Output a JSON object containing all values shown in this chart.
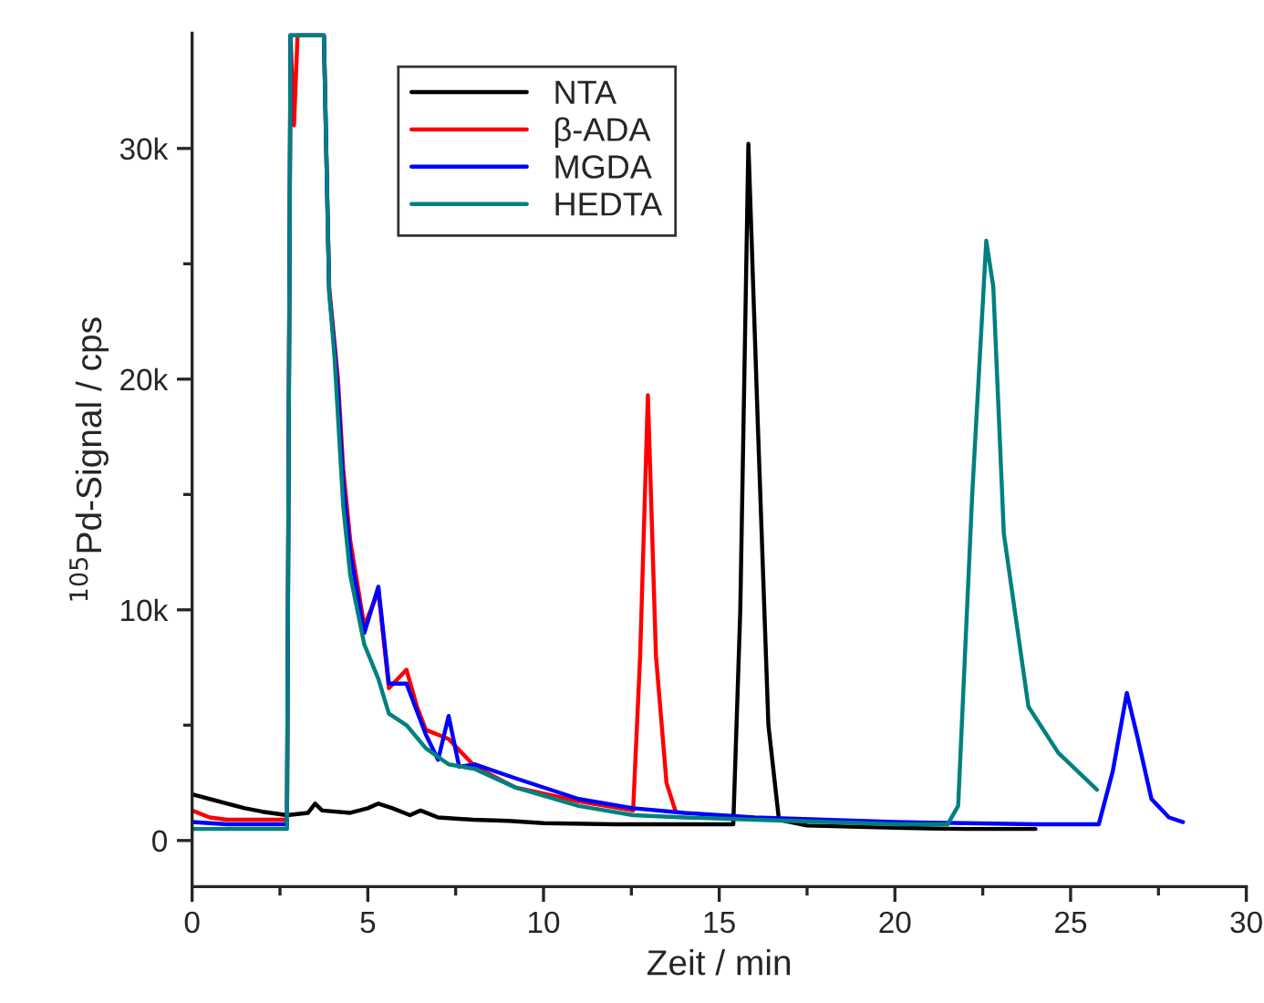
{
  "chart_data": {
    "type": "line",
    "xlabel": "Zeit / min",
    "ylabel": "$^{105}$Pd-Signal / cps",
    "xlim": [
      0,
      30
    ],
    "ylim": [
      -2000,
      35000
    ],
    "xticks": [
      0,
      {
        "value": 2.5,
        "label": null
      },
      5,
      {
        "value": 7.5,
        "label": null
      },
      10,
      {
        "value": 12.5,
        "label": null
      },
      15,
      {
        "value": 17.5,
        "label": null
      },
      20,
      {
        "value": 22.5,
        "label": null
      },
      25,
      {
        "value": 27.5,
        "label": null
      },
      30
    ],
    "yticks": [
      0,
      {
        "value": 5000,
        "label": null
      },
      {
        "value": 10000,
        "label": "10k"
      },
      {
        "value": 15000,
        "label": null
      },
      {
        "value": 20000,
        "label": "20k"
      },
      {
        "value": 25000,
        "label": null
      },
      {
        "value": 30000,
        "label": "30k"
      }
    ],
    "legend": "top",
    "grid": false,
    "marker": "none",
    "line_style": "solid",
    "series": [
      {
        "name": "NTA",
        "color": "#000000",
        "x": [
          0,
          0.5,
          1,
          1.5,
          2,
          2.7,
          3.3,
          3.5,
          3.7,
          4.5,
          5.0,
          5.3,
          5.7,
          6.2,
          6.5,
          7,
          8,
          9,
          10,
          12,
          14,
          15.4,
          15.6,
          15.83,
          16.1,
          16.4,
          16.7,
          17.5,
          20,
          22,
          24.0
        ],
        "values": [
          2000,
          1800,
          1600,
          1400,
          1250,
          1100,
          1200,
          1600,
          1300,
          1200,
          1400,
          1600,
          1400,
          1100,
          1300,
          1000,
          900,
          850,
          750,
          700,
          700,
          700,
          10000,
          30200,
          18000,
          5000,
          900,
          650,
          550,
          500,
          500
        ]
      },
      {
        "name": "β-ADA",
        "color": "#ff0000",
        "x": [
          0,
          0.5,
          1,
          2,
          2.7,
          2.8,
          2.9,
          3.0,
          3.75,
          3.9,
          4.15,
          4.3,
          4.5,
          4.9,
          5.3,
          5.6,
          6.1,
          6.4,
          6.65,
          7.3,
          8.05,
          9.2,
          11.0,
          12.55,
          12.75,
          12.97,
          13.2,
          13.5,
          13.75
        ],
        "values": [
          1300,
          1000,
          900,
          900,
          900,
          34900,
          31000,
          34900,
          34900,
          24000,
          20000,
          16100,
          13000,
          9300,
          10800,
          6600,
          7400,
          5800,
          4800,
          4400,
          3200,
          2300,
          1700,
          1300,
          8000,
          19300,
          8000,
          2500,
          1300
        ]
      },
      {
        "name": "MGDA",
        "color": "#0000ff",
        "x": [
          0,
          1,
          2,
          2.7,
          2.8,
          3.75,
          3.9,
          4.05,
          4.15,
          4.3,
          4.5,
          4.9,
          5.3,
          5.6,
          6.1,
          6.65,
          7.0,
          7.3,
          7.6,
          8.05,
          9.2,
          11.0,
          12.55,
          14,
          16,
          18,
          20,
          22,
          24,
          25.8,
          26.2,
          26.6,
          26.9,
          27.3,
          27.8,
          28.2
        ],
        "values": [
          800,
          700,
          700,
          700,
          34900,
          34900,
          23800,
          21400,
          19500,
          15500,
          12500,
          9000,
          11000,
          6800,
          6800,
          4600,
          3500,
          5400,
          3200,
          3300,
          2700,
          1800,
          1400,
          1200,
          1000,
          900,
          800,
          750,
          700,
          700,
          3000,
          6400,
          4500,
          1800,
          1000,
          800
        ]
      },
      {
        "name": "HEDTA",
        "color": "#008080",
        "x": [
          0,
          1,
          2,
          2.7,
          2.8,
          3.75,
          3.9,
          4.05,
          4.3,
          4.5,
          4.9,
          5.3,
          5.6,
          6.1,
          6.65,
          7.3,
          8.05,
          9.2,
          11.0,
          12.55,
          14,
          16,
          18,
          20,
          21.5,
          21.8,
          22.2,
          22.6,
          22.8,
          23.1,
          23.8,
          24.65,
          25.2,
          25.75
        ],
        "values": [
          500,
          500,
          500,
          500,
          34900,
          34900,
          23800,
          21000,
          14500,
          11500,
          8500,
          7000,
          5500,
          5000,
          4000,
          3300,
          3100,
          2300,
          1500,
          1100,
          1000,
          900,
          800,
          700,
          700,
          1500,
          15000,
          26000,
          24000,
          13300,
          5800,
          3800,
          3000,
          2200
        ]
      }
    ]
  }
}
